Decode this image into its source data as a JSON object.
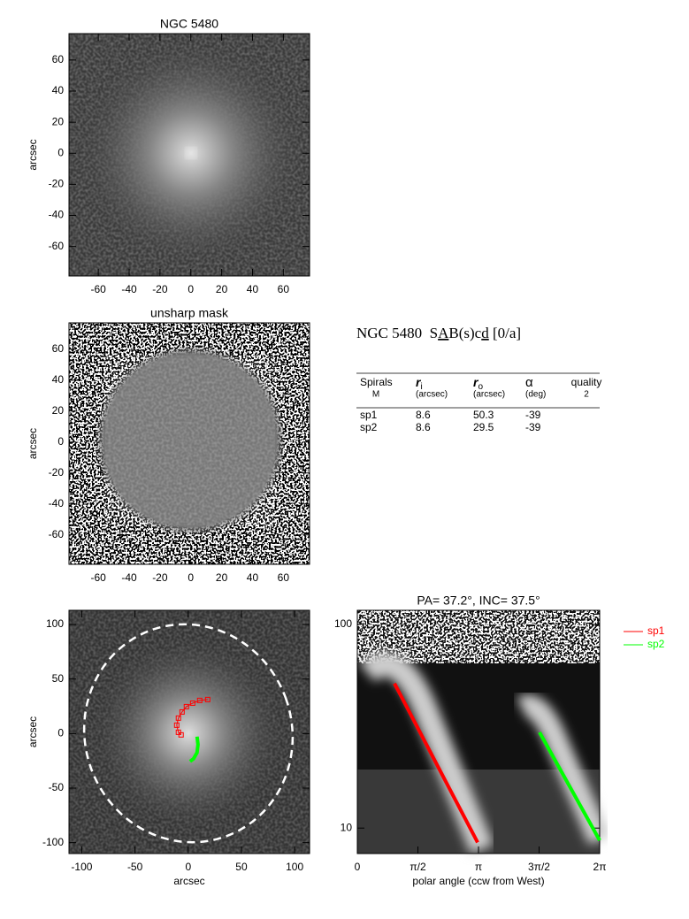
{
  "chart_data": [
    {
      "type": "image",
      "title": "NGC 5480",
      "ylabel": "arcsec",
      "xlim": [
        -79,
        77
      ],
      "ylim": [
        -79,
        77
      ],
      "xticks": [
        -60,
        -40,
        -20,
        0,
        20,
        40,
        60
      ],
      "yticks": [
        -60,
        -40,
        -20,
        0,
        20,
        40,
        60
      ]
    },
    {
      "type": "image",
      "title": "unsharp mask",
      "ylabel": "arcsec",
      "xlim": [
        -79,
        77
      ],
      "ylim": [
        -79,
        77
      ],
      "xticks": [
        -60,
        -40,
        -20,
        0,
        20,
        40,
        60
      ],
      "yticks": [
        -60,
        -40,
        -20,
        0,
        20,
        40,
        60
      ]
    },
    {
      "type": "line",
      "xlabel": "arcsec",
      "ylabel": "arcsec",
      "xlim": [
        -112,
        114
      ],
      "ylim": [
        -110,
        113
      ],
      "xticks": [
        -100,
        -50,
        0,
        50,
        100
      ],
      "yticks": [
        -100,
        -50,
        0,
        50,
        100
      ],
      "series": [
        {
          "color": "#ff0000",
          "x": [
            18.3,
            10.8,
            4.2,
            -1.7,
            -5.8,
            -9.2,
            -10.8,
            -9.2,
            -6.7
          ],
          "values": [
            31.2,
            30.4,
            27.9,
            24.7,
            19.8,
            14.2,
            7.7,
            1.2,
            -1.2
          ]
        },
        {
          "color": "#00ff00",
          "x": [
            8.3,
            9.2,
            8.3,
            5,
            1.7
          ],
          "values": [
            -2.8,
            -10.1,
            -17.4,
            -23.1,
            -25.5
          ]
        }
      ]
    },
    {
      "type": "line",
      "title": "PA= 37.2°, INC= 37.5°",
      "xlabel": "polar angle (ccw from West)",
      "xlim": [
        0,
        6.2832
      ],
      "ylim": [
        7.5,
        117
      ],
      "log_y": true,
      "legend": "outside right",
      "xticks": [
        0,
        {
          "value": 1.5708,
          "label": "π/2"
        },
        {
          "value": 3.1416,
          "label": "π"
        },
        {
          "value": 4.7124,
          "label": "3π/2"
        },
        {
          "value": 6.2832,
          "label": "2π"
        }
      ],
      "yticks": [
        10,
        100
      ],
      "series": [
        {
          "name": "sp1",
          "color": "#ff0000",
          "x": [
            0.963,
            3.119
          ],
          "values": [
            51.2,
            8.5
          ]
        },
        {
          "name": "sp2",
          "color": "#00ff00",
          "x": [
            4.724,
            6.283
          ],
          "values": [
            29.5,
            8.7
          ]
        }
      ]
    }
  ],
  "table": {
    "title": {
      "name": "NGC 5480",
      "class": [
        "S",
        "A",
        "B(s)c",
        "d",
        " [0/a]"
      ]
    },
    "header": [
      {
        "label": "Spirals",
        "sub": "M"
      },
      {
        "label": "r",
        "index": "i",
        "sub": "(arcsec)"
      },
      {
        "label": "r",
        "index": "o",
        "sub": "(arcsec)"
      },
      {
        "label": "α",
        "sub": "(deg)"
      },
      {
        "label": "quality",
        "sub": "2"
      }
    ],
    "rows": [
      [
        "sp1",
        "8.6",
        "50.3",
        "-39"
      ],
      [
        "sp2",
        "8.6",
        "29.5",
        "-39"
      ]
    ]
  }
}
